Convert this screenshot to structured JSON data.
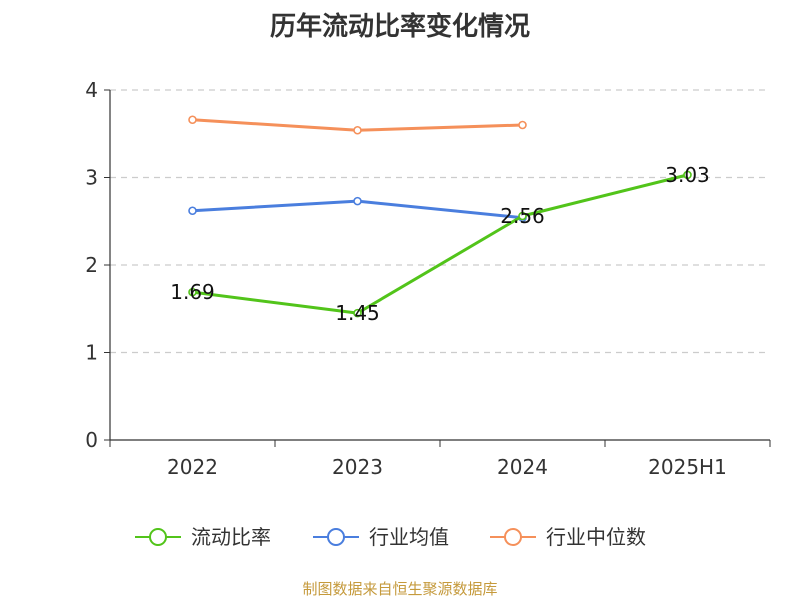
{
  "chart_data": {
    "type": "line",
    "title": "历年流动比率变化情况",
    "categories": [
      "2022",
      "2023",
      "2024",
      "2025H1"
    ],
    "ylim": [
      0,
      4
    ],
    "yticks": [
      0,
      1,
      2,
      3,
      4
    ],
    "grid": true,
    "legend_position": "bottom",
    "series": [
      {
        "name": "流动比率",
        "color": "#52c41a",
        "values": [
          1.69,
          1.45,
          2.56,
          3.03
        ],
        "labels": [
          "1.69",
          "1.45",
          "2.56",
          "3.03"
        ]
      },
      {
        "name": "行业均值",
        "color": "#4a7ede",
        "values": [
          2.62,
          2.73,
          2.54,
          null
        ]
      },
      {
        "name": "行业中位数",
        "color": "#f5905a",
        "values": [
          3.66,
          3.54,
          3.6,
          null
        ]
      }
    ]
  },
  "footer": "制图数据来自恒生聚源数据库"
}
